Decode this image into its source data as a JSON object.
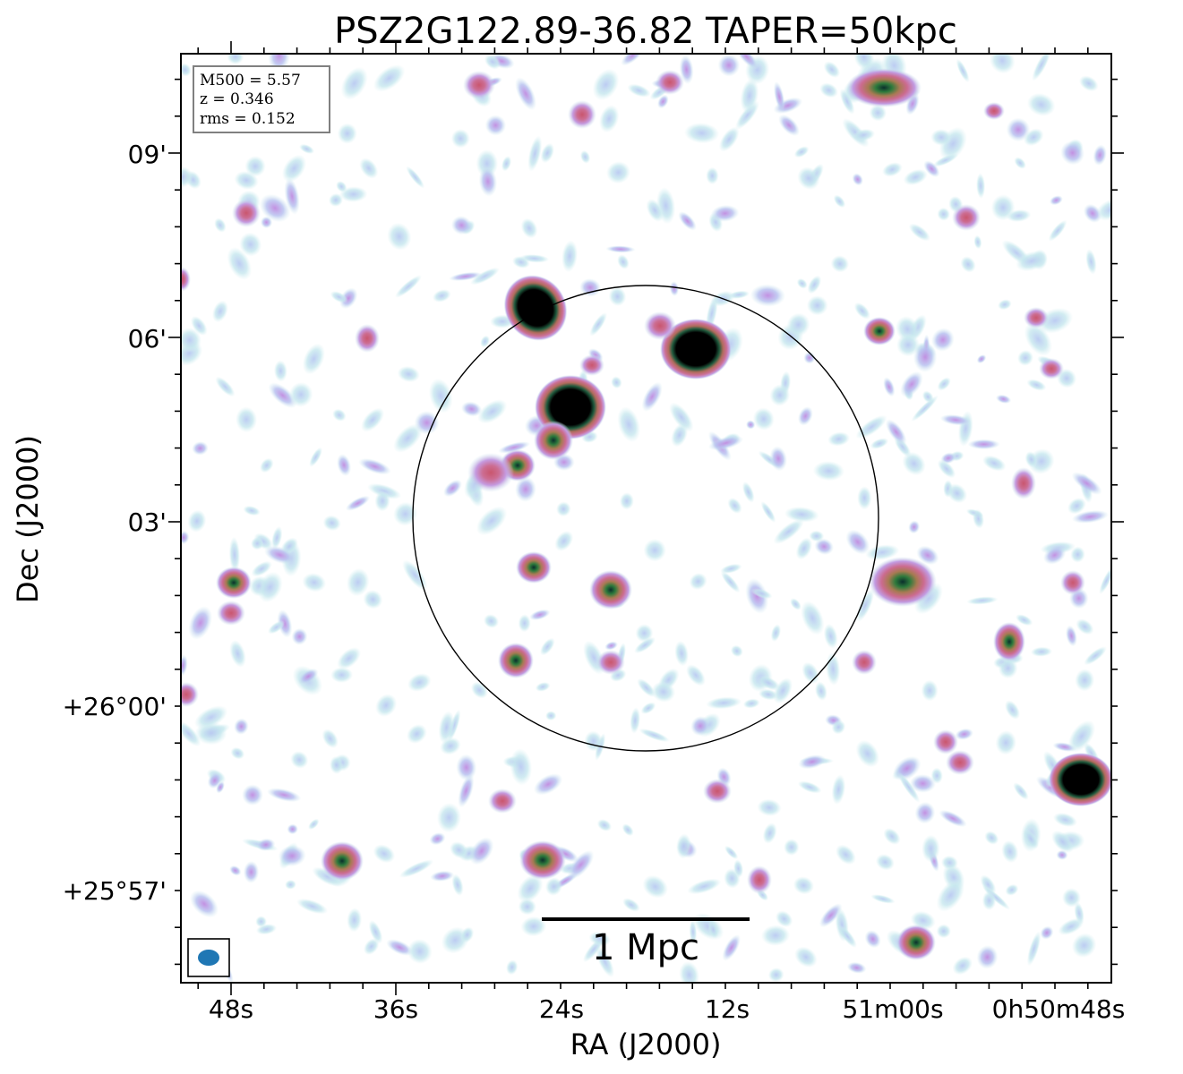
{
  "title": "PSZ2G122.89-36.82 TAPER=50kpc",
  "axes": {
    "xlabel": "RA (J2000)",
    "ylabel": "Dec (J2000)",
    "x_ticks": [
      "48s",
      "36s",
      "24s",
      "12s",
      "51m00s",
      "0h50m48s"
    ],
    "y_ticks": [
      "09'",
      "06'",
      "03'",
      "+26°00'",
      "+25°57'"
    ]
  },
  "info_box": {
    "line1": "M500 = 5.57",
    "line2": "z = 0.346",
    "line3": "rms = 0.152"
  },
  "scalebar": {
    "label": "1 Mpc"
  },
  "colors": {
    "frame": "#000000",
    "beam": "#1f77b4",
    "colormap": [
      "#ffffff",
      "#c8ecef",
      "#b8c8f0",
      "#c79be2",
      "#c96b90",
      "#b06a5a",
      "#2f7a3e",
      "#0f3b3a",
      "#000000"
    ]
  }
}
